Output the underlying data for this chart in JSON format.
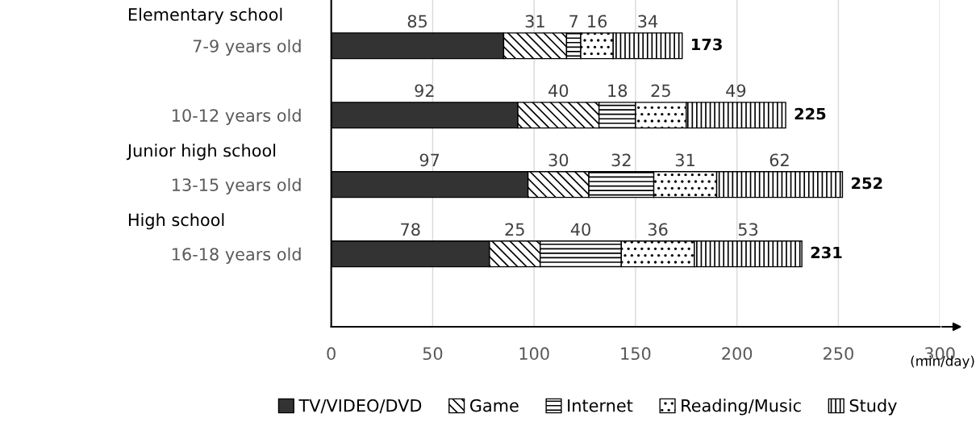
{
  "chart_data": {
    "type": "bar",
    "orientation": "horizontal",
    "stacked": true,
    "categories": [
      "7-9 years old",
      "10-12 years old",
      "13-15 years old",
      "16-18 years old"
    ],
    "series": [
      {
        "name": "TV/VIDEO/DVD",
        "color": "#333333",
        "values": [
          85,
          92,
          97,
          78
        ]
      },
      {
        "name": "Game",
        "color": "#000000",
        "values": [
          31,
          40,
          30,
          25
        ]
      },
      {
        "name": "Internet",
        "color": "#000000",
        "values": [
          7,
          18,
          32,
          40
        ]
      },
      {
        "name": "Reading/Music",
        "color": "#000000",
        "values": [
          16,
          25,
          31,
          36
        ]
      },
      {
        "name": "Study",
        "color": "#000000",
        "values": [
          34,
          49,
          62,
          53
        ]
      }
    ],
    "totals": [
      "173",
      "225",
      "252",
      "231"
    ],
    "data_labels": true,
    "xlim": [
      0,
      300
    ],
    "xticks": [
      0,
      50,
      100,
      150,
      200,
      250,
      300
    ],
    "xlabel": "(min/day)",
    "annotations": [
      "Elementary school",
      "Junior high school",
      "High school"
    ],
    "grid": "x",
    "legend": "bottom"
  }
}
